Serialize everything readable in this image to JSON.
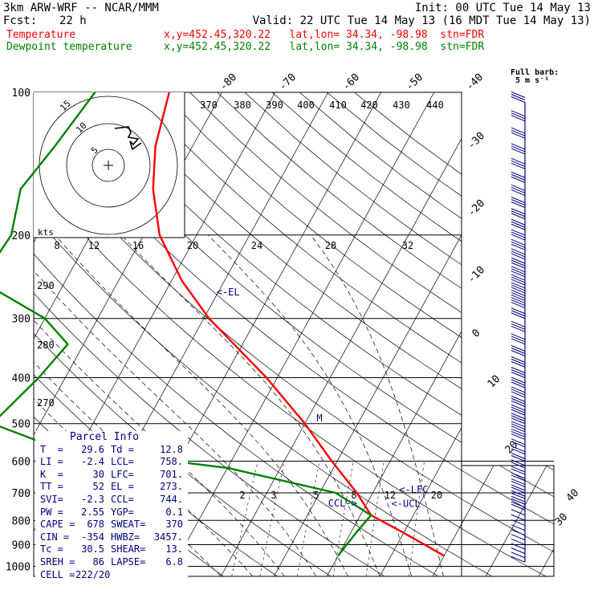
{
  "header": {
    "model": "3km ARW-WRF -- NCAR/MMM",
    "init": "Init: 00 UTC Tue 14 May 13",
    "fcst_label": "Fcst:",
    "fcst_value": "22 h",
    "valid": "Valid: 22 UTC Tue 14 May 13 (16 MDT Tue 14 May 13)",
    "temp_label": "Temperature",
    "temp_loc": "x,y=452.45,320.22   lat,lon= 34.34, -98.98  stn=FDR",
    "dew_label": "Dewpoint temperature",
    "dew_loc": "x,y=452.45,320.22   lat,lon= 34.34, -98.98  stn=FDR",
    "barb_title1": "Full barb:",
    "barb_title2": "5 m s⁻¹"
  },
  "colors": {
    "temperature": "#ff0000",
    "dewpoint": "#008000",
    "info": "#000080",
    "grid": "#000000"
  },
  "chart_data": {
    "type": "line",
    "title": "",
    "ylabel": "",
    "y_scale": "log-pressure",
    "pressure_ticks": [
      100,
      200,
      300,
      400,
      500,
      600,
      700,
      800,
      900,
      1000
    ],
    "pressure_tick_labels": [
      "100",
      "200",
      "300",
      "400",
      "500",
      "600",
      "700",
      "800",
      "900",
      "1000"
    ],
    "temp_top_labels": [
      "-80",
      "-70",
      "-60",
      "-50",
      "-40"
    ],
    "temp_right_labels": [
      "-30",
      "-20",
      "-10",
      "0",
      "10",
      "20",
      "30",
      "40"
    ],
    "theta_labels_top": [
      "370",
      "380",
      "390",
      "400",
      "410",
      "420",
      "430",
      "440"
    ],
    "theta_labels_left": [
      "290",
      "280",
      "270"
    ],
    "mixing_ratio_labels": [
      "2",
      "3",
      "5",
      "8",
      "12",
      "20"
    ],
    "hodograph": {
      "units": "kts",
      "ring_labels": [
        "5",
        "10",
        "15"
      ],
      "axis_labels": [
        "8",
        "12",
        "16",
        "20",
        "24",
        "28",
        "32"
      ]
    },
    "series": [
      {
        "name": "Temperature",
        "points": [
          {
            "p": 100,
            "t": -70
          },
          {
            "p": 130,
            "t": -67
          },
          {
            "p": 160,
            "t": -63
          },
          {
            "p": 200,
            "t": -57
          },
          {
            "p": 250,
            "t": -48
          },
          {
            "p": 300,
            "t": -39
          },
          {
            "p": 400,
            "t": -22
          },
          {
            "p": 500,
            "t": -10
          },
          {
            "p": 600,
            "t": -1
          },
          {
            "p": 700,
            "t": 7
          },
          {
            "p": 780,
            "t": 12
          },
          {
            "p": 850,
            "t": 20
          },
          {
            "p": 950,
            "t": 30
          }
        ]
      },
      {
        "name": "Dewpoint temperature",
        "points": [
          {
            "p": 100,
            "t": -84
          },
          {
            "p": 130,
            "t": -86
          },
          {
            "p": 160,
            "t": -88
          },
          {
            "p": 200,
            "t": -85
          },
          {
            "p": 250,
            "t": -86
          },
          {
            "p": 300,
            "t": -70
          },
          {
            "p": 340,
            "t": -63
          },
          {
            "p": 400,
            "t": -65
          },
          {
            "p": 500,
            "t": -69
          },
          {
            "p": 560,
            "t": -55
          },
          {
            "p": 620,
            "t": -20
          },
          {
            "p": 700,
            "t": 3
          },
          {
            "p": 780,
            "t": 12
          },
          {
            "p": 850,
            "t": 11
          },
          {
            "p": 950,
            "t": 10
          }
        ]
      }
    ],
    "annotations": [
      {
        "text": "<-EL",
        "p": 268,
        "t": -40
      },
      {
        "text": "M",
        "p": 495,
        "t": -8
      },
      {
        "text": "<-LFC",
        "p": 700,
        "t": 15
      },
      {
        "text": "CCL->",
        "p": 748,
        "t": 3
      },
      {
        "text": "<-UCL",
        "p": 750,
        "t": 15
      }
    ]
  },
  "wind_barbs": {
    "pressures": [
      105,
      115,
      125,
      135,
      145,
      155,
      165,
      175,
      185,
      195,
      205,
      215,
      225,
      235,
      245,
      255,
      265,
      275,
      285,
      300,
      320,
      340,
      360,
      380,
      400,
      420,
      440,
      460,
      480,
      500,
      520,
      540,
      560,
      580,
      600,
      620,
      640,
      660,
      680,
      700,
      720,
      740,
      760,
      780,
      800,
      820,
      840,
      860,
      880,
      900,
      920,
      940,
      960,
      980
    ],
    "barbs": [
      3,
      3,
      3,
      3,
      3,
      3,
      3,
      3,
      3,
      3,
      3,
      3,
      3,
      3,
      3,
      3,
      3,
      3,
      3,
      3,
      3,
      3,
      3,
      3,
      3,
      3,
      3,
      3,
      3,
      3,
      3,
      3,
      2,
      2,
      2,
      2,
      2,
      2,
      2,
      2,
      2,
      2,
      2,
      1,
      1,
      1,
      1,
      1,
      1,
      1,
      1,
      1,
      1,
      1
    ]
  },
  "parcel": {
    "title": "Parcel Info",
    "rows": [
      [
        "T  =",
        "29.6",
        "Td =",
        "12.8"
      ],
      [
        "LI =",
        "-2.4",
        "LCL=",
        "758."
      ],
      [
        "K  =",
        "30",
        "LFC=",
        "701."
      ],
      [
        "TT =",
        "52",
        "EL =",
        "273."
      ],
      [
        "SVI=",
        "-2.3",
        "CCL=",
        "744."
      ],
      [
        "PW =",
        "2.55",
        "YGP=",
        "0.1"
      ],
      [
        "CAPE =",
        "678",
        "SWEAT=",
        "370"
      ],
      [
        "CIN =",
        "-354",
        "HWBZ=",
        "3457."
      ],
      [
        "Tc =",
        "30.5",
        "SHEAR=",
        "13."
      ],
      [
        "SREH =",
        "86",
        "LAPSE=",
        "6.8"
      ],
      [
        "CELL =",
        "222/20",
        "",
        ""
      ]
    ]
  }
}
